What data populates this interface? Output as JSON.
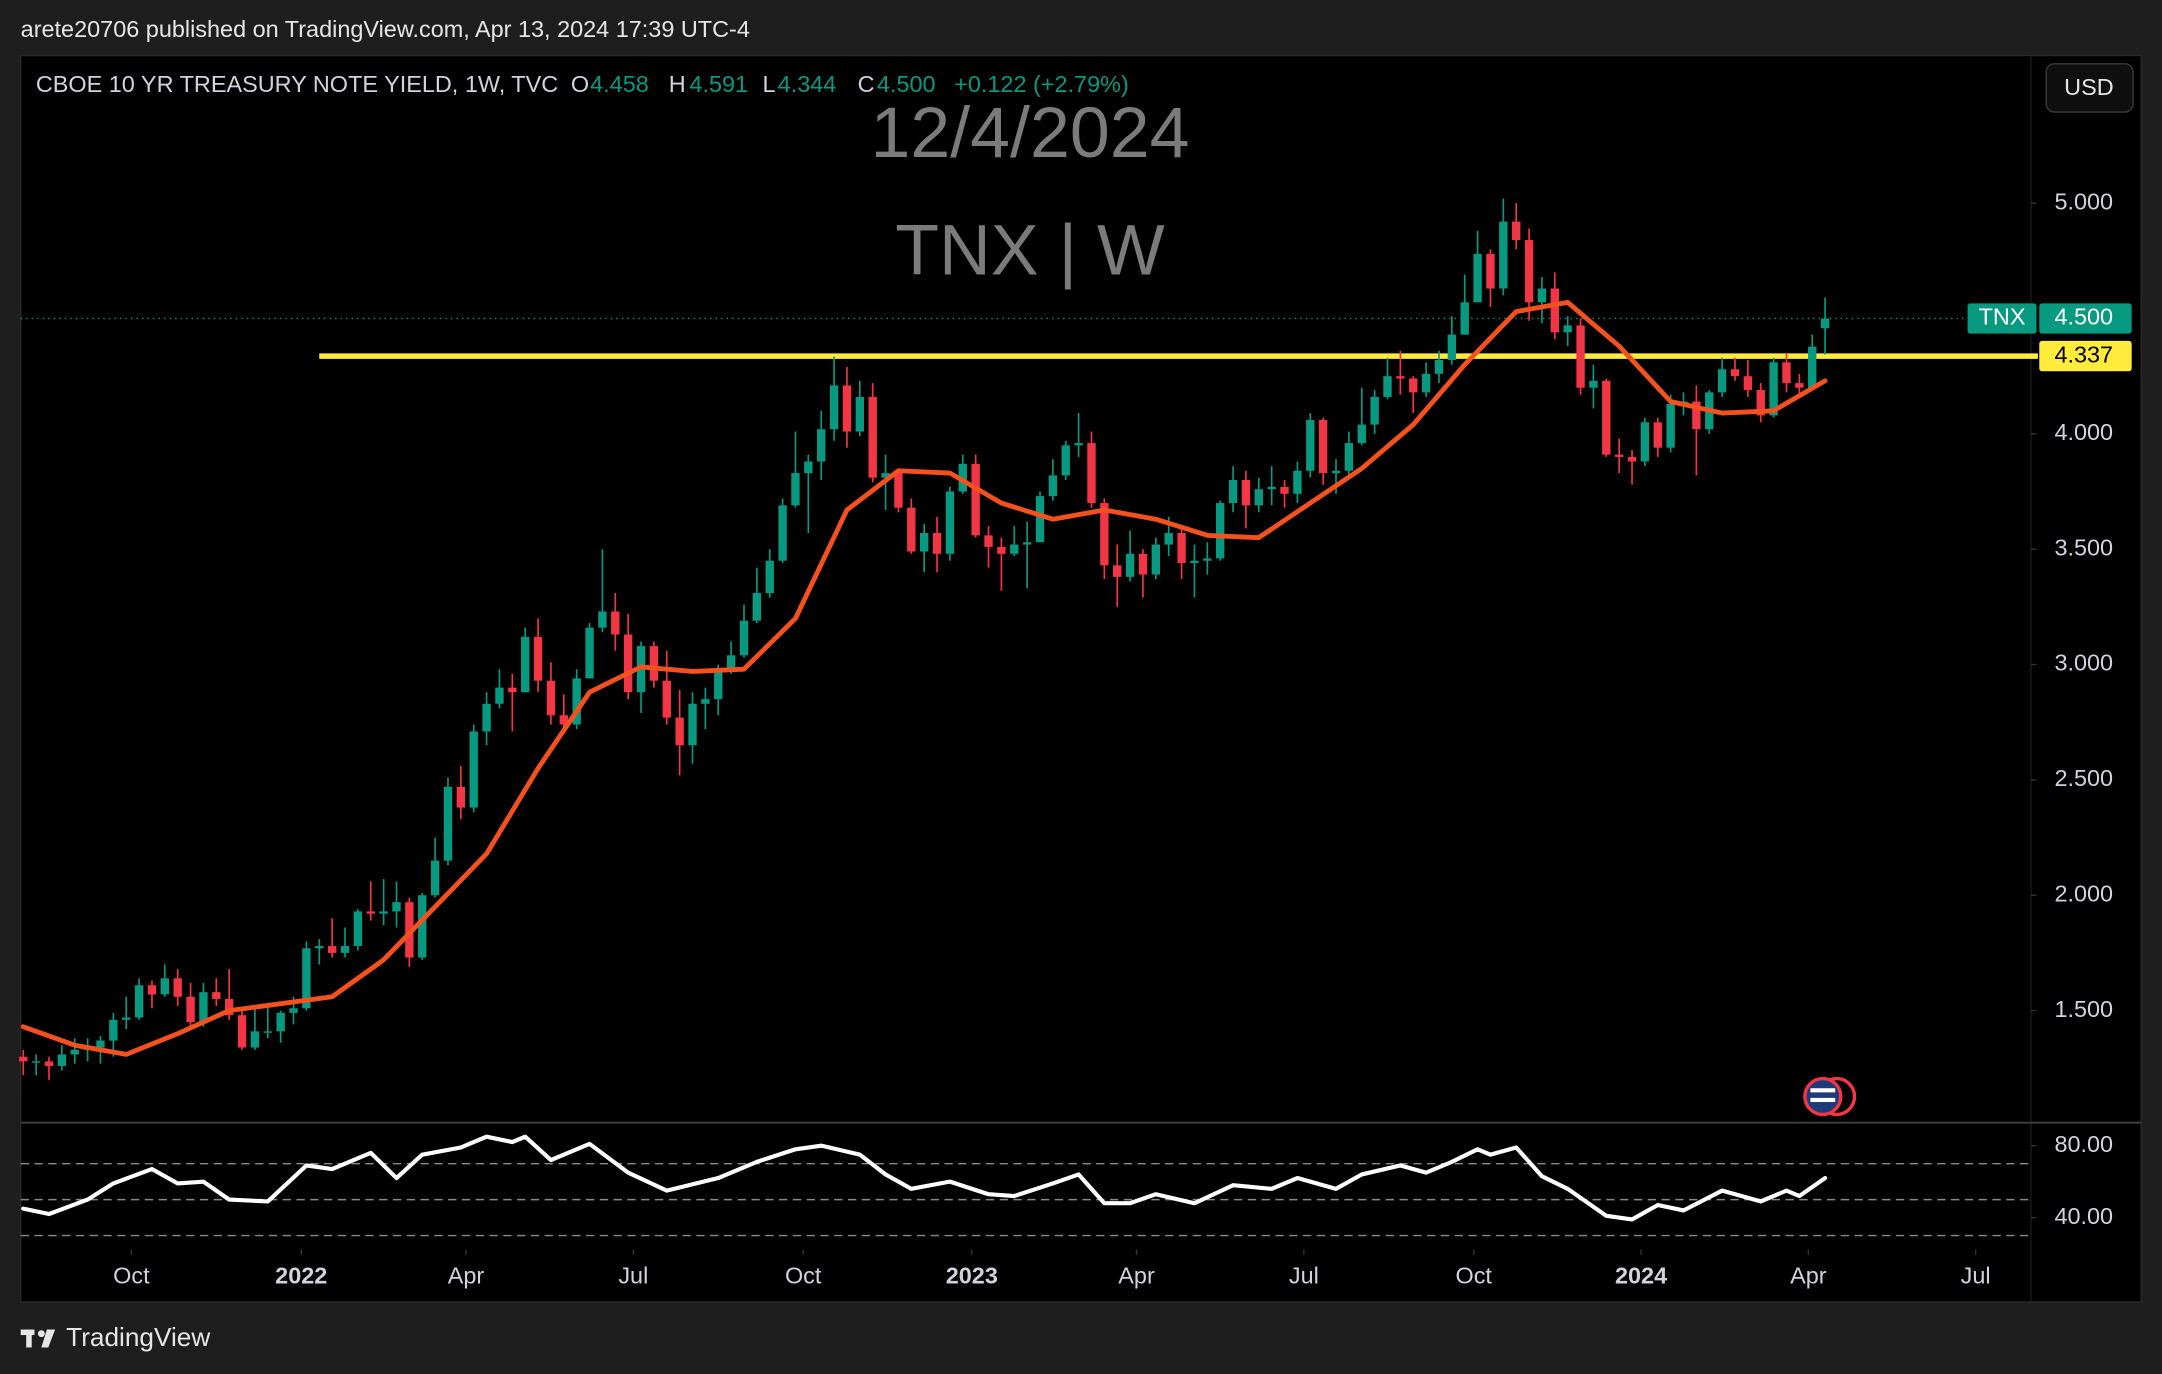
{
  "header": {
    "published": "arete20706 published on TradingView.com, Apr 13, 2024 17:39 UTC-4",
    "symbol": "CBOE 10 YR TREASURY NOTE YIELD, 1W, TVC",
    "o_label": "O",
    "o": "4.458",
    "h_label": "H",
    "h": "4.591",
    "l_label": "L",
    "l": "4.344",
    "c_label": "C",
    "c": "4.500",
    "change": "+0.122 (+2.79%)",
    "currency": "USD"
  },
  "footer": {
    "brand": "TradingView"
  },
  "chart_data": {
    "type": "candlestick",
    "title": "12/4/2024",
    "subtitle": "TNX | W",
    "up_color": "#089981",
    "down_color": "#f23645",
    "xlim": [
      -0.2,
      156
    ],
    "ylim": [
      1.02,
      5.64
    ],
    "yticks": [
      {
        "value": 1.5,
        "label": "1.500"
      },
      {
        "value": 2,
        "label": "2.000"
      },
      {
        "value": 2.5,
        "label": "2.500"
      },
      {
        "value": 3,
        "label": "3.000"
      },
      {
        "value": 3.5,
        "label": "3.500"
      },
      {
        "value": 4,
        "label": "4.000"
      },
      {
        "value": 5,
        "label": "5.000"
      }
    ],
    "xticks": [
      {
        "value": 8.4,
        "label": "Oct"
      },
      {
        "value": 21.6,
        "label": "2022"
      },
      {
        "value": 34.4,
        "label": "Apr"
      },
      {
        "value": 47.4,
        "label": "Jul"
      },
      {
        "value": 60.6,
        "label": "Oct"
      },
      {
        "value": 73.7,
        "label": "2023"
      },
      {
        "value": 86.5,
        "label": "Apr"
      },
      {
        "value": 99.5,
        "label": "Jul"
      },
      {
        "value": 112.7,
        "label": "Oct"
      },
      {
        "value": 125.7,
        "label": "2024"
      },
      {
        "value": 138.7,
        "label": "Apr"
      },
      {
        "value": 151.7,
        "label": "Jul"
      }
    ],
    "last_price": {
      "name": "TNX",
      "value": 4.5,
      "label": "4.500",
      "color": "#089981"
    },
    "hline": {
      "value": 4.337,
      "start": 23,
      "color": "#ffeb3b"
    },
    "ohlc": [
      [
        1.3,
        1.33,
        1.22,
        1.28
      ],
      [
        1.28,
        1.31,
        1.22,
        1.28
      ],
      [
        1.28,
        1.3,
        1.2,
        1.26
      ],
      [
        1.26,
        1.35,
        1.24,
        1.31
      ],
      [
        1.31,
        1.38,
        1.27,
        1.33
      ],
      [
        1.33,
        1.38,
        1.28,
        1.34
      ],
      [
        1.34,
        1.39,
        1.27,
        1.37
      ],
      [
        1.37,
        1.49,
        1.3,
        1.46
      ],
      [
        1.46,
        1.56,
        1.42,
        1.47
      ],
      [
        1.47,
        1.64,
        1.46,
        1.61
      ],
      [
        1.61,
        1.63,
        1.51,
        1.57
      ],
      [
        1.57,
        1.7,
        1.56,
        1.64
      ],
      [
        1.64,
        1.68,
        1.52,
        1.56
      ],
      [
        1.56,
        1.62,
        1.42,
        1.45
      ],
      [
        1.45,
        1.62,
        1.43,
        1.58
      ],
      [
        1.58,
        1.64,
        1.52,
        1.55
      ],
      [
        1.55,
        1.68,
        1.46,
        1.48
      ],
      [
        1.48,
        1.51,
        1.33,
        1.34
      ],
      [
        1.34,
        1.52,
        1.33,
        1.41
      ],
      [
        1.41,
        1.52,
        1.38,
        1.41
      ],
      [
        1.41,
        1.5,
        1.36,
        1.49
      ],
      [
        1.49,
        1.56,
        1.44,
        1.51
      ],
      [
        1.51,
        1.8,
        1.5,
        1.77
      ],
      [
        1.77,
        1.81,
        1.7,
        1.78
      ],
      [
        1.78,
        1.9,
        1.73,
        1.75
      ],
      [
        1.75,
        1.86,
        1.73,
        1.78
      ],
      [
        1.78,
        1.94,
        1.76,
        1.93
      ],
      [
        1.93,
        2.06,
        1.89,
        1.92
      ],
      [
        1.92,
        2.07,
        1.87,
        1.93
      ],
      [
        1.93,
        2.06,
        1.86,
        1.97
      ],
      [
        1.97,
        1.99,
        1.69,
        1.73
      ],
      [
        1.73,
        2.01,
        1.72,
        2.0
      ],
      [
        2.0,
        2.25,
        1.99,
        2.15
      ],
      [
        2.15,
        2.51,
        2.13,
        2.47
      ],
      [
        2.47,
        2.56,
        2.33,
        2.38
      ],
      [
        2.38,
        2.74,
        2.36,
        2.71
      ],
      [
        2.71,
        2.88,
        2.65,
        2.83
      ],
      [
        2.83,
        2.98,
        2.81,
        2.9
      ],
      [
        2.9,
        2.96,
        2.71,
        2.88
      ],
      [
        2.88,
        3.16,
        2.88,
        3.12
      ],
      [
        3.12,
        3.2,
        2.88,
        2.93
      ],
      [
        2.93,
        3.01,
        2.74,
        2.78
      ],
      [
        2.78,
        2.87,
        2.71,
        2.74
      ],
      [
        2.74,
        2.98,
        2.72,
        2.94
      ],
      [
        2.94,
        3.18,
        2.94,
        3.16
      ],
      [
        3.16,
        3.5,
        3.14,
        3.23
      ],
      [
        3.23,
        3.31,
        3.06,
        3.13
      ],
      [
        3.13,
        3.22,
        2.85,
        2.88
      ],
      [
        2.88,
        3.1,
        2.79,
        3.08
      ],
      [
        3.08,
        3.1,
        2.9,
        2.93
      ],
      [
        2.93,
        3.06,
        2.74,
        2.77
      ],
      [
        2.77,
        2.89,
        2.52,
        2.65
      ],
      [
        2.65,
        2.88,
        2.57,
        2.83
      ],
      [
        2.83,
        2.9,
        2.72,
        2.85
      ],
      [
        2.85,
        3.0,
        2.78,
        2.98
      ],
      [
        2.98,
        3.1,
        2.96,
        3.04
      ],
      [
        3.04,
        3.26,
        3.03,
        3.19
      ],
      [
        3.19,
        3.42,
        3.18,
        3.31
      ],
      [
        3.31,
        3.5,
        3.29,
        3.45
      ],
      [
        3.45,
        3.72,
        3.44,
        3.69
      ],
      [
        3.69,
        4.01,
        3.68,
        3.83
      ],
      [
        3.83,
        3.91,
        3.57,
        3.88
      ],
      [
        3.88,
        4.1,
        3.8,
        4.02
      ],
      [
        4.02,
        4.335,
        3.97,
        4.21
      ],
      [
        4.21,
        4.29,
        3.94,
        4.01
      ],
      [
        4.01,
        4.23,
        3.99,
        4.16
      ],
      [
        4.16,
        4.22,
        3.79,
        3.81
      ],
      [
        3.81,
        3.91,
        3.67,
        3.83
      ],
      [
        3.83,
        3.85,
        3.66,
        3.68
      ],
      [
        3.68,
        3.72,
        3.48,
        3.49
      ],
      [
        3.49,
        3.61,
        3.4,
        3.57
      ],
      [
        3.57,
        3.64,
        3.4,
        3.48
      ],
      [
        3.48,
        3.77,
        3.45,
        3.75
      ],
      [
        3.75,
        3.91,
        3.74,
        3.87
      ],
      [
        3.87,
        3.91,
        3.55,
        3.56
      ],
      [
        3.56,
        3.6,
        3.42,
        3.51
      ],
      [
        3.51,
        3.55,
        3.32,
        3.48
      ],
      [
        3.48,
        3.6,
        3.47,
        3.52
      ],
      [
        3.52,
        3.62,
        3.33,
        3.53
      ],
      [
        3.53,
        3.75,
        3.53,
        3.73
      ],
      [
        3.73,
        3.89,
        3.71,
        3.82
      ],
      [
        3.82,
        3.97,
        3.8,
        3.95
      ],
      [
        3.95,
        4.09,
        3.9,
        3.96
      ],
      [
        3.96,
        4.01,
        3.68,
        3.7
      ],
      [
        3.7,
        3.72,
        3.37,
        3.43
      ],
      [
        3.43,
        3.52,
        3.25,
        3.38
      ],
      [
        3.38,
        3.58,
        3.36,
        3.48
      ],
      [
        3.48,
        3.5,
        3.29,
        3.39
      ],
      [
        3.39,
        3.55,
        3.37,
        3.52
      ],
      [
        3.52,
        3.64,
        3.47,
        3.57
      ],
      [
        3.57,
        3.6,
        3.37,
        3.44
      ],
      [
        3.44,
        3.52,
        3.29,
        3.45
      ],
      [
        3.45,
        3.53,
        3.39,
        3.46
      ],
      [
        3.46,
        3.71,
        3.45,
        3.7
      ],
      [
        3.7,
        3.86,
        3.66,
        3.8
      ],
      [
        3.8,
        3.84,
        3.59,
        3.69
      ],
      [
        3.69,
        3.81,
        3.66,
        3.76
      ],
      [
        3.76,
        3.86,
        3.69,
        3.77
      ],
      [
        3.77,
        3.8,
        3.68,
        3.74
      ],
      [
        3.74,
        3.88,
        3.7,
        3.84
      ],
      [
        3.84,
        4.09,
        3.81,
        4.06
      ],
      [
        4.06,
        4.07,
        3.78,
        3.83
      ],
      [
        3.83,
        3.89,
        3.74,
        3.84
      ],
      [
        3.84,
        4.01,
        3.82,
        3.96
      ],
      [
        3.96,
        4.2,
        3.95,
        4.04
      ],
      [
        4.04,
        4.19,
        4.0,
        4.16
      ],
      [
        4.16,
        4.33,
        4.15,
        4.25
      ],
      [
        4.25,
        4.36,
        4.17,
        4.24
      ],
      [
        4.24,
        4.25,
        4.09,
        4.18
      ],
      [
        4.18,
        4.31,
        4.16,
        4.26
      ],
      [
        4.26,
        4.36,
        4.22,
        4.32
      ],
      [
        4.32,
        4.51,
        4.3,
        4.43
      ],
      [
        4.43,
        4.69,
        4.43,
        4.57
      ],
      [
        4.57,
        4.88,
        4.57,
        4.78
      ],
      [
        4.78,
        4.8,
        4.55,
        4.63
      ],
      [
        4.63,
        5.02,
        4.6,
        4.92
      ],
      [
        4.92,
        5.0,
        4.8,
        4.84
      ],
      [
        4.84,
        4.89,
        4.49,
        4.57
      ],
      [
        4.57,
        4.68,
        4.48,
        4.63
      ],
      [
        4.63,
        4.7,
        4.41,
        4.44
      ],
      [
        4.44,
        4.51,
        4.38,
        4.47
      ],
      [
        4.47,
        4.5,
        4.17,
        4.2
      ],
      [
        4.2,
        4.3,
        4.11,
        4.23
      ],
      [
        4.23,
        4.24,
        3.9,
        3.91
      ],
      [
        3.91,
        3.98,
        3.83,
        3.9
      ],
      [
        3.9,
        3.93,
        3.78,
        3.88
      ],
      [
        3.88,
        4.07,
        3.86,
        4.05
      ],
      [
        4.05,
        4.07,
        3.9,
        3.94
      ],
      [
        3.94,
        4.17,
        3.92,
        4.13
      ],
      [
        4.13,
        4.18,
        4.08,
        4.14
      ],
      [
        4.14,
        4.21,
        3.82,
        4.02
      ],
      [
        4.02,
        4.19,
        4.0,
        4.18
      ],
      [
        4.18,
        4.33,
        4.16,
        4.28
      ],
      [
        4.28,
        4.33,
        4.23,
        4.25
      ],
      [
        4.25,
        4.32,
        4.16,
        4.19
      ],
      [
        4.19,
        4.22,
        4.05,
        4.08
      ],
      [
        4.08,
        4.33,
        4.07,
        4.31
      ],
      [
        4.31,
        4.35,
        4.18,
        4.22
      ],
      [
        4.22,
        4.26,
        4.16,
        4.2
      ],
      [
        4.2,
        4.43,
        4.19,
        4.378
      ],
      [
        4.458,
        4.591,
        4.344,
        4.5
      ]
    ],
    "ma": {
      "color": "#f4511e",
      "x": [
        0,
        4,
        8,
        12,
        16,
        20,
        24,
        28,
        32,
        36,
        40,
        44,
        48,
        52,
        56,
        60,
        64,
        68,
        72,
        76,
        80,
        84,
        88,
        92,
        96,
        100,
        104,
        108,
        112,
        116,
        120,
        124,
        128,
        132,
        136,
        140
      ],
      "values": [
        1.43,
        1.35,
        1.31,
        1.4,
        1.5,
        1.53,
        1.56,
        1.72,
        1.95,
        2.18,
        2.55,
        2.88,
        2.99,
        2.97,
        2.98,
        3.2,
        3.67,
        3.84,
        3.83,
        3.7,
        3.63,
        3.67,
        3.63,
        3.56,
        3.55,
        3.7,
        3.85,
        4.04,
        4.3,
        4.53,
        4.57,
        4.38,
        4.14,
        4.09,
        4.1,
        4.23
      ]
    },
    "rsi": {
      "color": "#ffffff",
      "ylim": [
        23,
        92
      ],
      "yticks": [
        {
          "value": 80,
          "label": "80.00"
        },
        {
          "value": 40,
          "label": "40.00"
        }
      ],
      "levels": [
        70,
        50,
        30
      ],
      "x": [
        0,
        2,
        5,
        7,
        10,
        12,
        14,
        16,
        19,
        22,
        24,
        27,
        29,
        31,
        34,
        36,
        38,
        39,
        41,
        44,
        47,
        50,
        54,
        57,
        60,
        62,
        65,
        67,
        69,
        72,
        75,
        77,
        80,
        82,
        84,
        86,
        88,
        91,
        94,
        97,
        99,
        102,
        104,
        107,
        109,
        111,
        113,
        114,
        116,
        118,
        120,
        123,
        125,
        127,
        129,
        132,
        135,
        137,
        138,
        140
      ],
      "values": [
        45,
        42,
        50,
        59,
        67,
        59,
        60,
        50,
        49,
        69,
        67,
        76,
        62,
        75,
        79,
        85,
        82,
        85,
        72,
        81,
        65,
        55,
        62,
        71,
        78,
        80,
        75,
        64,
        56,
        60,
        53,
        52,
        59,
        64,
        48,
        48,
        53,
        48,
        58,
        56,
        62,
        56,
        64,
        69,
        65,
        71,
        78,
        75,
        79,
        63,
        56,
        41,
        39,
        47,
        44,
        55,
        49,
        55,
        52,
        62
      ]
    }
  }
}
